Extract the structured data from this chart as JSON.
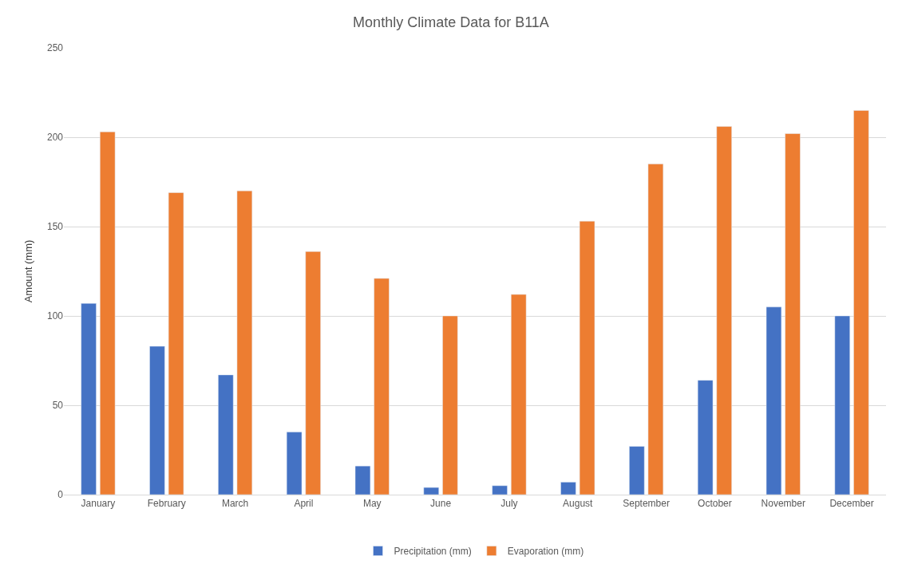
{
  "chart_data": {
    "type": "bar",
    "title": "Monthly Climate Data for B11A",
    "ylabel": "Amount (mm)",
    "categories": [
      "January",
      "February",
      "March",
      "April",
      "May",
      "June",
      "July",
      "August",
      "September",
      "October",
      "November",
      "December"
    ],
    "series": [
      {
        "name": "Precipitation (mm)",
        "color": "#4472c4",
        "values": [
          107,
          83,
          67,
          35,
          16,
          4,
          5,
          7,
          27,
          64,
          105,
          100
        ]
      },
      {
        "name": "Evaporation (mm)",
        "color": "#ed7d31",
        "values": [
          203,
          169,
          170,
          136,
          121,
          100,
          112,
          153,
          185,
          206,
          202,
          215
        ]
      }
    ],
    "ylim": [
      0,
      250
    ],
    "yticks": [
      0,
      50,
      100,
      150,
      200,
      250
    ],
    "grid": "y",
    "legend": "bottom"
  }
}
